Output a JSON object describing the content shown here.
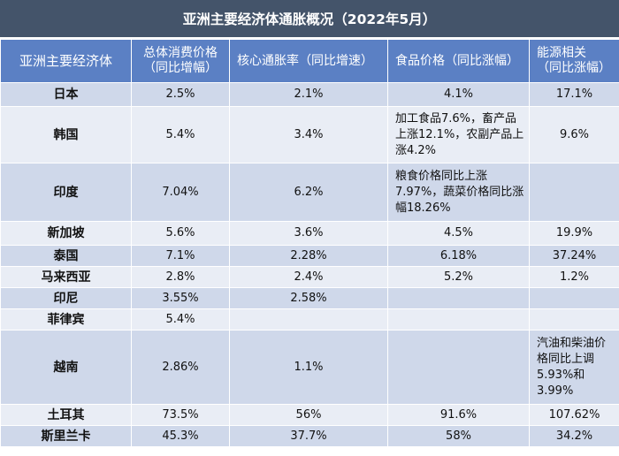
{
  "title": "亚洲主要经济体通胀概况（2022年5月）",
  "headers": [
    "亚洲主要经济体",
    "总体消费价格（同比增幅）",
    "核心通胀率（同比增速）",
    "食品价格（同比涨幅）",
    "能源相关（同比涨幅）"
  ],
  "header_lines": {
    "col1": [
      "总体消费价格",
      "（同比增幅）"
    ],
    "col2": "核心通胀率（同比增速）",
    "col3": "食品价格（同比涨幅）",
    "col4": [
      "能源相关",
      "（同比涨幅）"
    ]
  },
  "rows": [
    {
      "name": "日本",
      "cpi": "2.5%",
      "core": "2.1%",
      "food": "4.1%",
      "energy": "17.1%"
    },
    {
      "name": "韩国",
      "cpi": "5.4%",
      "core": "3.4%",
      "food": "加工食品7.6%，畜产品上涨12.1%，农副产品上涨4.2%",
      "energy": "9.6%"
    },
    {
      "name": "印度",
      "cpi": "7.04%",
      "core": "6.2%",
      "food": "粮食价格同比上涨7.97%，蔬菜价格同比涨幅18.26%",
      "energy": ""
    },
    {
      "name": "新加坡",
      "cpi": "5.6%",
      "core": "3.6%",
      "food": "4.5%",
      "energy": "19.9%"
    },
    {
      "name": "泰国",
      "cpi": "7.1%",
      "core": "2.28%",
      "food": "6.18%",
      "energy": "37.24%"
    },
    {
      "name": "马来西亚",
      "cpi": "2.8%",
      "core": "2.4%",
      "food": "5.2%",
      "energy": "1.2%"
    },
    {
      "name": "印尼",
      "cpi": "3.55%",
      "core": "2.58%",
      "food": "",
      "energy": ""
    },
    {
      "name": "菲律宾",
      "cpi": "5.4%",
      "core": "",
      "food": "",
      "energy": ""
    },
    {
      "name": "越南",
      "cpi": "2.86%",
      "core": "1.1%",
      "food": "",
      "energy": "汽油和柴油价格同比上调5.93%和3.99%"
    },
    {
      "name": "土耳其",
      "cpi": "73.5%",
      "core": "56%",
      "food": "91.6%",
      "energy": "107.62%"
    },
    {
      "name": "斯里兰卡",
      "cpi": "45.3%",
      "core": "37.7%",
      "food": "58%",
      "energy": "34.2%"
    }
  ]
}
